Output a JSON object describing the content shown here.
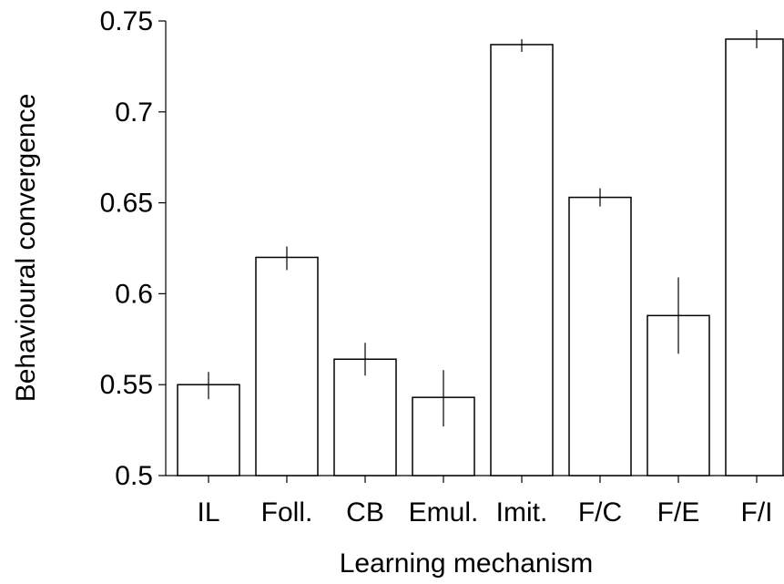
{
  "chart_data": {
    "type": "bar",
    "title": "",
    "xlabel": "Learning mechanism",
    "ylabel": "Behavioural convergence",
    "ylim": [
      0.5,
      0.75
    ],
    "yticks": [
      0.5,
      0.55,
      0.6,
      0.65,
      0.7,
      0.75
    ],
    "ytick_labels": [
      "0.5",
      "0.55",
      "0.6",
      "0.65",
      "0.7",
      "0.75"
    ],
    "categories": [
      "IL",
      "Foll.",
      "CB",
      "Emul.",
      "Imit.",
      "F/C",
      "F/E",
      "F/I"
    ],
    "values": [
      0.55,
      0.62,
      0.564,
      0.543,
      0.737,
      0.653,
      0.588,
      0.74
    ],
    "error_low": [
      0.542,
      0.613,
      0.555,
      0.527,
      0.733,
      0.648,
      0.567,
      0.735
    ],
    "error_high": [
      0.557,
      0.626,
      0.573,
      0.558,
      0.74,
      0.658,
      0.609,
      0.745
    ],
    "grid": false,
    "bar_fill": "#ffffff",
    "bar_stroke": "#000000"
  }
}
